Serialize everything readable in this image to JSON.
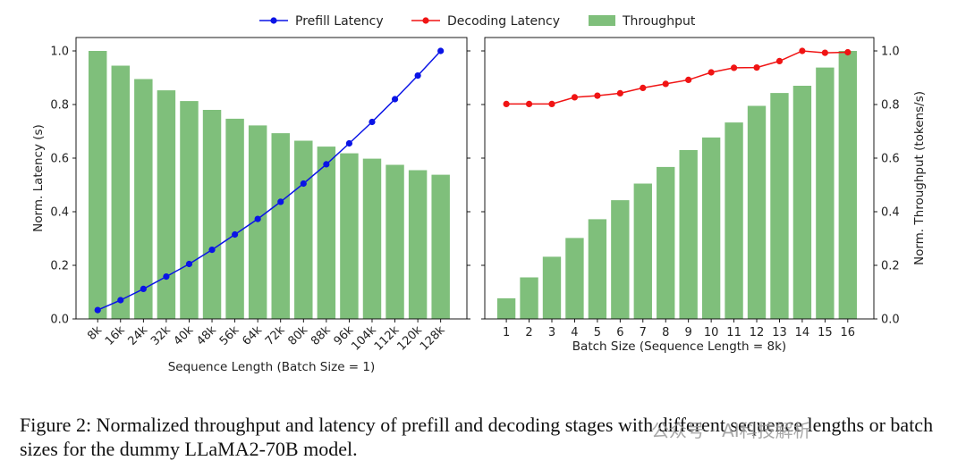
{
  "legend": {
    "prefill": "Prefill Latency",
    "decoding": "Decoding Latency",
    "throughput": "Throughput"
  },
  "colors": {
    "prefill": "#0a14e6",
    "decoding": "#f01414",
    "throughput": "#7fbf7b"
  },
  "chart_data": [
    {
      "type": "bar+line",
      "xlabel": "Sequence Length (Batch Size = 1)",
      "ylabel": "Norm. Latency (s)",
      "ylim": [
        0,
        1.05
      ],
      "yticks": [
        "0.0",
        "0.2",
        "0.4",
        "0.6",
        "0.8",
        "1.0"
      ],
      "categories": [
        "8k",
        "16k",
        "24k",
        "32k",
        "40k",
        "48k",
        "56k",
        "64k",
        "72k",
        "80k",
        "88k",
        "96k",
        "104k",
        "112k",
        "120k",
        "128k"
      ],
      "series": [
        {
          "name": "Throughput",
          "kind": "bar",
          "values": [
            1.0,
            0.945,
            0.895,
            0.853,
            0.813,
            0.78,
            0.747,
            0.722,
            0.693,
            0.665,
            0.643,
            0.618,
            0.598,
            0.575,
            0.555,
            0.538
          ]
        },
        {
          "name": "Prefill Latency",
          "kind": "line",
          "values": [
            0.033,
            0.07,
            0.112,
            0.158,
            0.205,
            0.258,
            0.315,
            0.373,
            0.437,
            0.505,
            0.577,
            0.655,
            0.735,
            0.82,
            0.908,
            1.0
          ]
        }
      ]
    },
    {
      "type": "bar+line",
      "xlabel": "Batch Size (Sequence Length = 8k)",
      "ylabel": "Norm. Throughput (tokens/s)",
      "ylim": [
        0,
        1.05
      ],
      "yticks": [
        "0.0",
        "0.2",
        "0.4",
        "0.6",
        "0.8",
        "1.0"
      ],
      "categories": [
        "1",
        "2",
        "3",
        "4",
        "5",
        "6",
        "7",
        "8",
        "9",
        "10",
        "11",
        "12",
        "13",
        "14",
        "15",
        "16"
      ],
      "series": [
        {
          "name": "Throughput",
          "kind": "bar",
          "values": [
            0.077,
            0.155,
            0.232,
            0.302,
            0.372,
            0.443,
            0.505,
            0.567,
            0.63,
            0.677,
            0.733,
            0.795,
            0.843,
            0.87,
            0.938,
            1.0
          ]
        },
        {
          "name": "Decoding Latency",
          "kind": "line",
          "values": [
            0.802,
            0.802,
            0.802,
            0.827,
            0.833,
            0.842,
            0.862,
            0.877,
            0.892,
            0.92,
            0.937,
            0.938,
            0.962,
            1.0,
            0.993,
            0.995
          ]
        }
      ]
    }
  ],
  "caption": "Figure 2: Normalized throughput and latency of prefill and decoding stages with different sequence lengths or batch sizes for the dummy LLaMA2-70B model.",
  "watermark": "公众号 · AI科技解析"
}
